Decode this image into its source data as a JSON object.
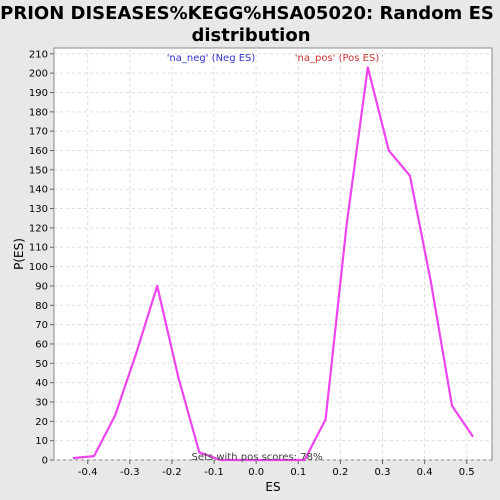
{
  "chart_data": {
    "type": "line",
    "title_line1": "PRION DISEASES%KEGG%HSA05020: Random ES",
    "title_line2": "distribution",
    "xlabel": "ES",
    "ylabel": "P(ES)",
    "xlim": [
      -0.48,
      0.56
    ],
    "ylim": [
      0,
      213
    ],
    "xticks": [
      -0.4,
      -0.3,
      -0.2,
      -0.1,
      0.0,
      0.1,
      0.2,
      0.3,
      0.4,
      0.5
    ],
    "xtick_labels": [
      "-0.4",
      "-0.3",
      "-0.2",
      "-0.1",
      "0.0",
      "0.1",
      "0.2",
      "0.3",
      "0.4",
      "0.5"
    ],
    "yticks": [
      0,
      10,
      20,
      30,
      40,
      50,
      60,
      70,
      80,
      90,
      100,
      110,
      120,
      130,
      140,
      150,
      160,
      170,
      180,
      190,
      200,
      210
    ],
    "grid": true,
    "legend": [
      {
        "label": "'na_neg' (Neg ES)",
        "color": "#3333cc"
      },
      {
        "label": "'na_pos' (Pos ES)",
        "color": "#cc3333"
      }
    ],
    "annotation": "Sets with pos scores: 78%",
    "series": [
      {
        "color": "#ee44ee",
        "x": [
          -0.435,
          -0.385,
          -0.335,
          -0.285,
          -0.235,
          -0.185,
          -0.135,
          -0.085,
          -0.035,
          0.015,
          0.065,
          0.115,
          0.165,
          0.215,
          0.265,
          0.315,
          0.365,
          0.415,
          0.465,
          0.515
        ],
        "y": [
          1,
          2,
          23,
          55,
          90,
          43,
          4,
          0,
          0,
          0,
          0,
          0,
          21,
          122,
          203,
          160,
          147,
          92,
          28,
          12
        ]
      }
    ]
  }
}
